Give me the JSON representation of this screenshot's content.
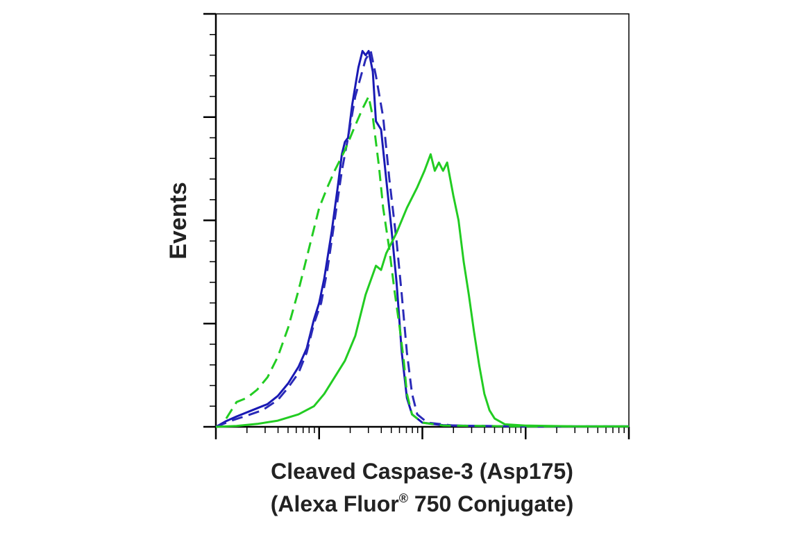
{
  "chart_data": {
    "type": "line",
    "title": "",
    "ylabel": "Events",
    "xlabel_line1": "Cleaved Caspase-3 (Asp175)",
    "xlabel_line2_pre": "(Alexa Fluor",
    "xlabel_line2_sup": "®",
    "xlabel_line2_post": " 750 Conjugate)",
    "xscale": "log",
    "xlim_decades": [
      0,
      4
    ],
    "ylim": [
      0,
      100
    ],
    "grid": false,
    "legend": "none",
    "series": [
      {
        "color": "#1919b4",
        "style": "solid",
        "points": [
          [
            0.0,
            0
          ],
          [
            0.1,
            1.4
          ],
          [
            0.2,
            2.5
          ],
          [
            0.35,
            4
          ],
          [
            0.5,
            5.5
          ],
          [
            0.6,
            7.5
          ],
          [
            0.7,
            10.5
          ],
          [
            0.8,
            14.5
          ],
          [
            0.88,
            19
          ],
          [
            0.95,
            26
          ],
          [
            1.0,
            30
          ],
          [
            1.05,
            36
          ],
          [
            1.12,
            47
          ],
          [
            1.18,
            58
          ],
          [
            1.22,
            66
          ],
          [
            1.25,
            69
          ],
          [
            1.28,
            70
          ],
          [
            1.32,
            78
          ],
          [
            1.38,
            87
          ],
          [
            1.42,
            91
          ],
          [
            1.45,
            90
          ],
          [
            1.48,
            91
          ],
          [
            1.52,
            86
          ],
          [
            1.55,
            74
          ],
          [
            1.6,
            72
          ],
          [
            1.65,
            60
          ],
          [
            1.7,
            48
          ],
          [
            1.75,
            35
          ],
          [
            1.8,
            18
          ],
          [
            1.85,
            7
          ],
          [
            1.9,
            3
          ],
          [
            2.0,
            1
          ],
          [
            2.2,
            0.4
          ],
          [
            2.5,
            0.2
          ],
          [
            3.0,
            0.1
          ],
          [
            4.0,
            0.1
          ]
        ]
      },
      {
        "color": "#2a2ab8",
        "style": "dashed",
        "points": [
          [
            0.0,
            0
          ],
          [
            0.15,
            1.5
          ],
          [
            0.3,
            2.7
          ],
          [
            0.45,
            4
          ],
          [
            0.6,
            6.5
          ],
          [
            0.7,
            9.5
          ],
          [
            0.8,
            13
          ],
          [
            0.88,
            18
          ],
          [
            0.95,
            25
          ],
          [
            1.02,
            30
          ],
          [
            1.08,
            38
          ],
          [
            1.15,
            50
          ],
          [
            1.22,
            62
          ],
          [
            1.28,
            70
          ],
          [
            1.35,
            80
          ],
          [
            1.45,
            89
          ],
          [
            1.5,
            91
          ],
          [
            1.55,
            85
          ],
          [
            1.62,
            75
          ],
          [
            1.68,
            60
          ],
          [
            1.75,
            45
          ],
          [
            1.8,
            32
          ],
          [
            1.85,
            18
          ],
          [
            1.9,
            8
          ],
          [
            1.95,
            3
          ],
          [
            2.05,
            1
          ],
          [
            2.3,
            0.3
          ],
          [
            3.0,
            0.1
          ],
          [
            4.0,
            0.1
          ]
        ]
      },
      {
        "color": "#22cc22",
        "style": "solid",
        "points": [
          [
            0.0,
            0
          ],
          [
            0.2,
            0.2
          ],
          [
            0.4,
            0.7
          ],
          [
            0.6,
            1.5
          ],
          [
            0.8,
            3
          ],
          [
            0.95,
            5
          ],
          [
            1.05,
            8
          ],
          [
            1.15,
            12
          ],
          [
            1.25,
            16
          ],
          [
            1.35,
            22
          ],
          [
            1.45,
            32
          ],
          [
            1.55,
            39
          ],
          [
            1.6,
            38
          ],
          [
            1.65,
            42
          ],
          [
            1.75,
            47
          ],
          [
            1.85,
            53
          ],
          [
            1.95,
            58
          ],
          [
            2.02,
            62
          ],
          [
            2.08,
            66
          ],
          [
            2.12,
            62
          ],
          [
            2.16,
            64
          ],
          [
            2.2,
            62
          ],
          [
            2.24,
            64
          ],
          [
            2.3,
            56
          ],
          [
            2.35,
            50
          ],
          [
            2.4,
            40
          ],
          [
            2.45,
            32
          ],
          [
            2.5,
            23
          ],
          [
            2.55,
            15
          ],
          [
            2.6,
            8
          ],
          [
            2.65,
            4
          ],
          [
            2.7,
            2
          ],
          [
            2.8,
            0.6
          ],
          [
            3.0,
            0.3
          ],
          [
            3.5,
            0.1
          ],
          [
            4.0,
            0.1
          ]
        ]
      },
      {
        "color": "#22cc22",
        "style": "dashed",
        "points": [
          [
            0.1,
            2
          ],
          [
            0.2,
            6
          ],
          [
            0.3,
            7
          ],
          [
            0.4,
            9
          ],
          [
            0.5,
            12
          ],
          [
            0.6,
            17
          ],
          [
            0.7,
            24
          ],
          [
            0.8,
            33
          ],
          [
            0.9,
            43
          ],
          [
            1.0,
            53
          ],
          [
            1.08,
            58
          ],
          [
            1.15,
            62
          ],
          [
            1.25,
            67
          ],
          [
            1.3,
            70
          ],
          [
            1.35,
            73
          ],
          [
            1.42,
            77
          ],
          [
            1.48,
            80
          ],
          [
            1.52,
            75
          ],
          [
            1.58,
            63
          ],
          [
            1.62,
            53
          ],
          [
            1.68,
            43
          ],
          [
            1.73,
            33
          ],
          [
            1.78,
            24
          ],
          [
            1.82,
            16
          ],
          [
            1.85,
            8
          ],
          [
            1.9,
            3
          ],
          [
            2.0,
            1
          ],
          [
            2.2,
            0.3
          ],
          [
            3.0,
            0.1
          ],
          [
            4.0,
            0.1
          ]
        ]
      }
    ]
  }
}
